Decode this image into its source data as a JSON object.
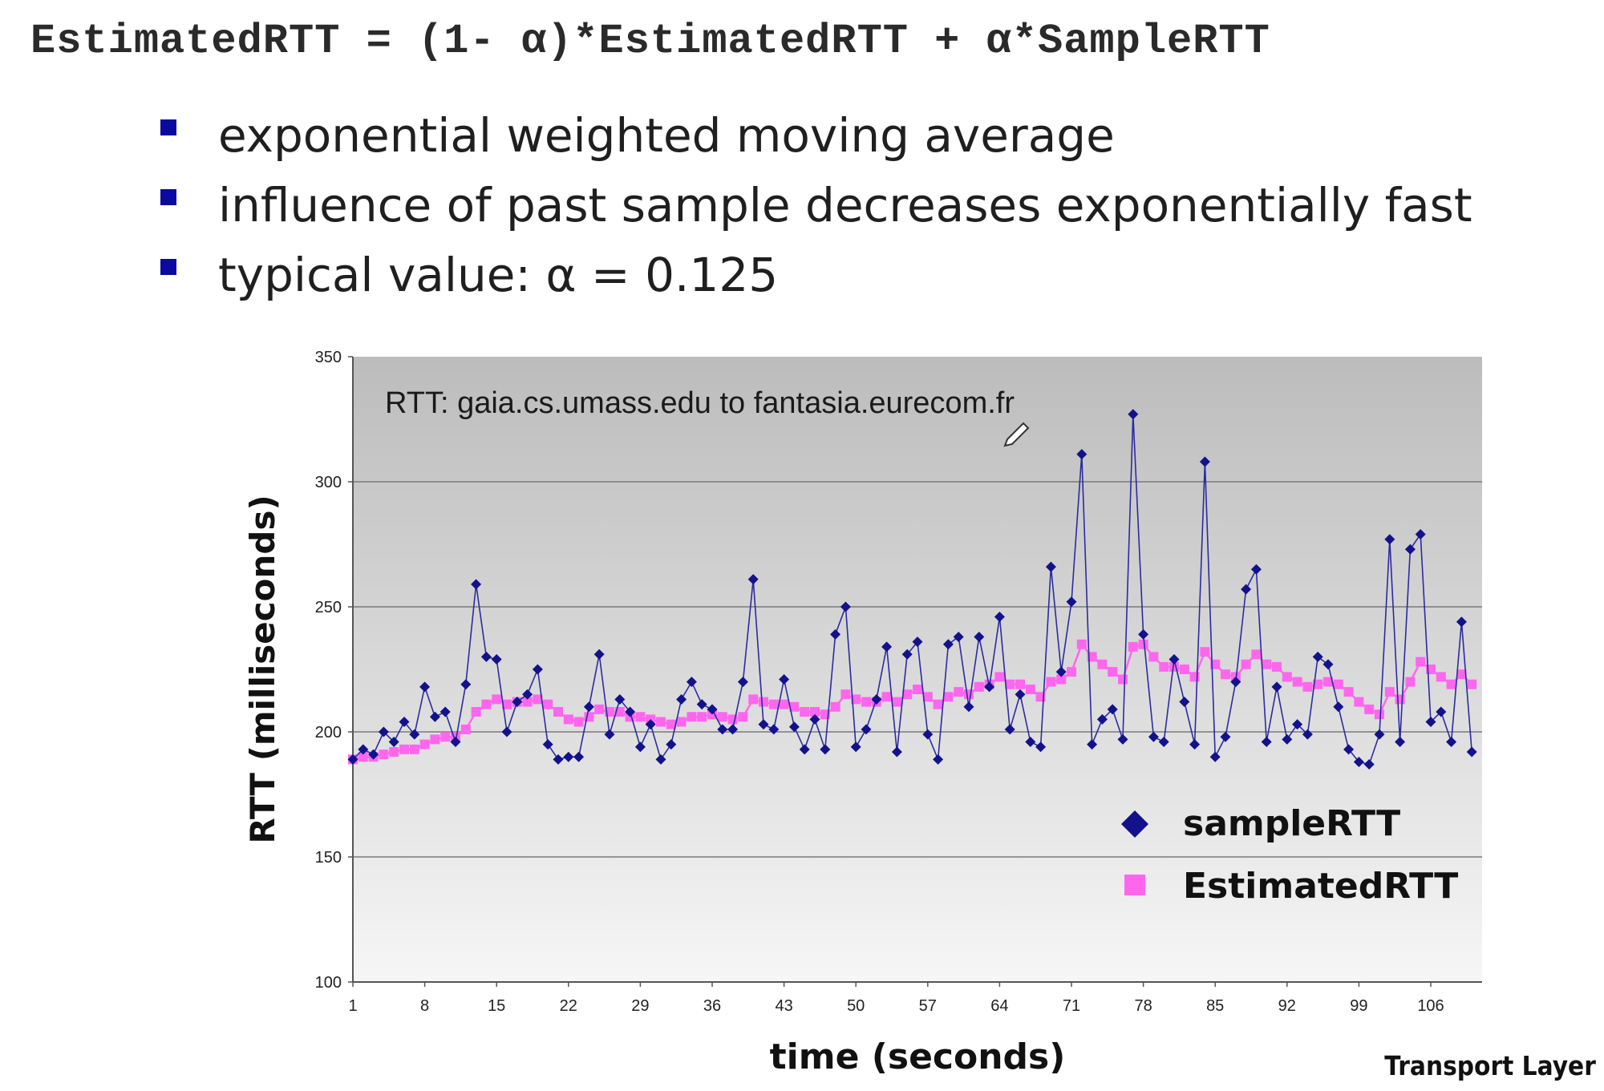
{
  "slide": {
    "formula": "EstimatedRTT = (1- α)*EstimatedRTT + α*SampleRTT",
    "bullets": [
      "exponential weighted moving average",
      "influence of past sample decreases exponentially fast",
      "typical value: α  = 0.125"
    ],
    "footer": "Transport Layer"
  },
  "colors": {
    "bullet": "#0a0aa0",
    "sample": "#12128c",
    "estimated": "#ff66ee"
  },
  "chart_data": {
    "type": "line",
    "title": "RTT: gaia.cs.umass.edu to fantasia.eurecom.fr",
    "xlabel": "time (seconds)",
    "ylabel": "RTT (milliseconds)",
    "ylim": [
      100,
      350
    ],
    "yticks": [
      100,
      150,
      200,
      250,
      300,
      350
    ],
    "xticks": [
      1,
      8,
      15,
      22,
      29,
      36,
      43,
      50,
      57,
      64,
      71,
      78,
      85,
      92,
      99,
      106
    ],
    "xlim": [
      1,
      111
    ],
    "grid": true,
    "legend_position": "bottom-right",
    "series": [
      {
        "name": "sampleRTT",
        "marker": "diamond",
        "values": [
          189,
          193,
          191,
          200,
          196,
          204,
          199,
          218,
          206,
          208,
          196,
          219,
          259,
          230,
          229,
          200,
          212,
          215,
          225,
          195,
          189,
          190,
          190,
          210,
          231,
          199,
          213,
          208,
          194,
          203,
          189,
          195,
          213,
          220,
          211,
          209,
          201,
          201,
          220,
          261,
          203,
          201,
          221,
          202,
          193,
          205,
          193,
          239,
          250,
          194,
          201,
          213,
          234,
          192,
          231,
          236,
          199,
          189,
          235,
          238,
          210,
          238,
          218,
          246,
          201,
          215,
          196,
          194,
          266,
          224,
          252,
          311,
          195,
          205,
          209,
          197,
          327,
          239,
          198,
          196,
          229,
          212,
          195,
          308,
          190,
          198,
          220,
          257,
          265,
          196,
          218,
          197,
          203,
          199,
          230,
          227,
          210,
          193,
          188,
          187,
          199,
          277,
          196,
          273,
          279,
          204,
          208,
          196,
          244,
          192
        ]
      },
      {
        "name": "EstimatedRTT",
        "marker": "square",
        "values": [
          189,
          190,
          190,
          191,
          192,
          193,
          193,
          195,
          197,
          198,
          198,
          201,
          208,
          211,
          213,
          211,
          212,
          212,
          213,
          211,
          208,
          205,
          204,
          206,
          209,
          208,
          208,
          206,
          206,
          205,
          204,
          203,
          204,
          206,
          206,
          207,
          206,
          205,
          206,
          213,
          212,
          211,
          211,
          210,
          208,
          208,
          207,
          210,
          215,
          213,
          212,
          212,
          214,
          212,
          215,
          217,
          214,
          211,
          214,
          216,
          215,
          218,
          219,
          222,
          219,
          219,
          217,
          214,
          220,
          221,
          224,
          235,
          230,
          227,
          224,
          221,
          234,
          235,
          230,
          226,
          226,
          225,
          222,
          232,
          227,
          223,
          222,
          227,
          231,
          227,
          226,
          222,
          220,
          218,
          219,
          220,
          219,
          216,
          212,
          209,
          207,
          216,
          213,
          220,
          228,
          225,
          222,
          219,
          223,
          219
        ]
      }
    ]
  }
}
